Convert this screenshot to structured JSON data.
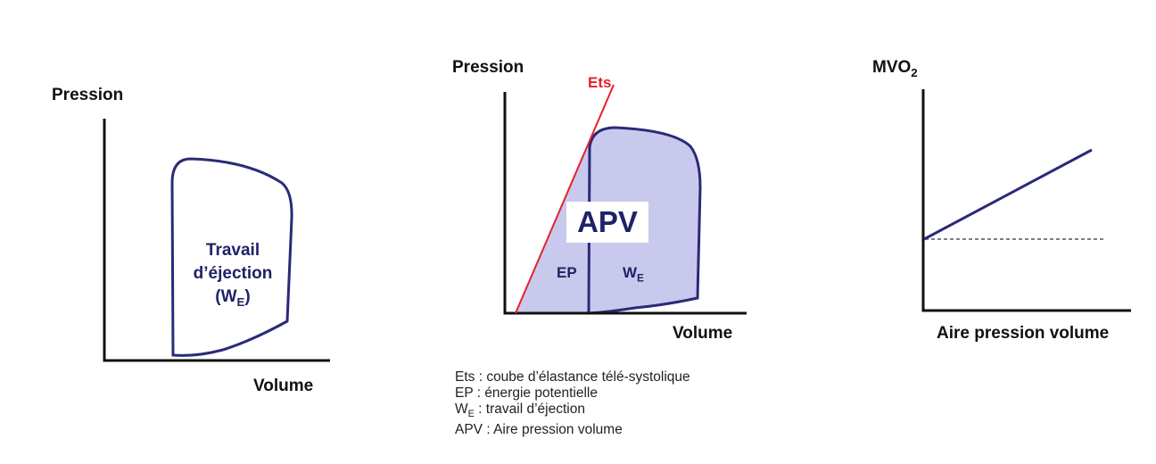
{
  "diagram1": {
    "y_label": "Pression",
    "x_label": "Volume",
    "loop_label_line1": "Travail",
    "loop_label_line2": "d’éjection",
    "loop_label_line3_prefix": "(W",
    "loop_label_line3_sub": "E",
    "loop_label_line3_suffix": ")"
  },
  "diagram2": {
    "y_label": "Pression",
    "x_label": "Volume",
    "line_label": "Ets",
    "center_label": "APV",
    "ep_label": "EP",
    "we_label_main": "W",
    "we_label_sub": "E"
  },
  "diagram3": {
    "y_label_main": "MVO",
    "y_label_sub": "2",
    "x_label": "Aire pression volume"
  },
  "legend": {
    "line1": "Ets : coube d’élastance télé-systolique",
    "line2": "EP : énergie potentielle",
    "line3_main": "W",
    "line3_sub": "E",
    "line3_rest": " : travail d’éjection",
    "line4": "APV : Aire pression volume"
  },
  "colors": {
    "loop_stroke": "#2a2a78",
    "loop_fill": "#c9c9ee",
    "ets_line": "#e8202a",
    "axis": "#111111"
  }
}
